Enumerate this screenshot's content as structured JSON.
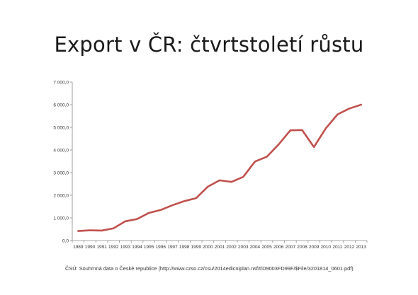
{
  "slide": {
    "title": "Export v ČR: čtvrtstoletí růstu",
    "source": "ČSÚ: Souhrnná data o České republice (http://www.czso.cz/csu/2014edicniplan.nsf/t/D9003FD99F/$File/3201814_0601.pdf)"
  },
  "colors": {
    "line": "#c0504d",
    "axis": "#888888",
    "text": "#333333"
  },
  "chart_data": {
    "type": "line",
    "title": "",
    "xlabel": "",
    "ylabel": "",
    "ylim": [
      0,
      7000
    ],
    "yticks": [
      "0,0",
      "1 000,0",
      "2 000,0",
      "3 000,0",
      "4 000,0",
      "5 000,0",
      "6 000,0",
      "7 000,0"
    ],
    "ytick_values": [
      0,
      1000,
      2000,
      3000,
      4000,
      5000,
      6000,
      7000
    ],
    "categories": [
      "1989",
      "1990",
      "1991",
      "1992",
      "1993",
      "1994",
      "1995",
      "1996",
      "1997",
      "1998",
      "1999",
      "2000",
      "2001",
      "2002",
      "2003",
      "2004",
      "2005",
      "2006",
      "2007",
      "2008",
      "2009",
      "2010",
      "2011",
      "2012",
      "2013"
    ],
    "grid": false,
    "legend": "none",
    "series": [
      {
        "values": [
          420,
          450,
          440,
          540,
          850,
          950,
          1220,
          1350,
          1560,
          1740,
          1870,
          2380,
          2660,
          2590,
          2810,
          3490,
          3700,
          4240,
          4870,
          4880,
          4130,
          4950,
          5570,
          5830,
          6000
        ]
      }
    ]
  }
}
